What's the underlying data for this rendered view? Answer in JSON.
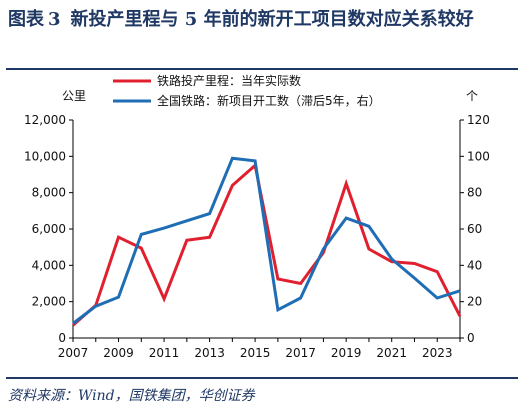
{
  "title": {
    "prefix": "图表",
    "number": "3",
    "text": "新投产里程与 5 年前的新开工项目数对应关系较好"
  },
  "source": "资料来源：Wind，国铁集团，华创证券",
  "colors": {
    "title": "#1f3864",
    "series_red": "#e0202e",
    "series_blue": "#1f6eb5"
  },
  "chart_data": {
    "type": "line",
    "left_unit": "公里",
    "right_unit": "个",
    "xlim": [
      2007,
      2024
    ],
    "ylim_left": [
      0,
      12000
    ],
    "ylim_right": [
      0,
      120
    ],
    "left_ticks": [
      "0",
      "2,000",
      "4,000",
      "6,000",
      "8,000",
      "10,000",
      "12,000"
    ],
    "right_ticks": [
      "0",
      "20",
      "40",
      "60",
      "80",
      "100",
      "120"
    ],
    "x_ticks": [
      "2007",
      "2009",
      "2011",
      "2013",
      "2015",
      "2017",
      "2019",
      "2021",
      "2023"
    ],
    "legend_position": "top",
    "series": [
      {
        "name": "铁路投产里程：当年实际数",
        "axis": "left",
        "color": "#e0202e",
        "x": [
          2007,
          2008,
          2009,
          2010,
          2011,
          2012,
          2013,
          2014,
          2015,
          2016,
          2017,
          2018,
          2019,
          2020,
          2021,
          2022,
          2023,
          2024
        ],
        "values": [
          700,
          1800,
          5550,
          4950,
          2150,
          5380,
          5550,
          8400,
          9500,
          3250,
          3000,
          4700,
          8500,
          4900,
          4200,
          4100,
          3650,
          1200
        ]
      },
      {
        "name": "全国铁路：新项目开工数（滞后5年，右）",
        "axis": "right",
        "color": "#1f6eb5",
        "x": [
          2007,
          2008,
          2009,
          2010,
          2011,
          2012,
          2013,
          2014,
          2015,
          2016,
          2017,
          2018,
          2019,
          2020,
          2021,
          2022,
          2023,
          2024
        ],
        "values": [
          8,
          17.5,
          22.5,
          57,
          60.5,
          64.5,
          68.5,
          99,
          97.5,
          15.5,
          22,
          49,
          66,
          61.5,
          43.5,
          33,
          22,
          26
        ]
      }
    ]
  }
}
